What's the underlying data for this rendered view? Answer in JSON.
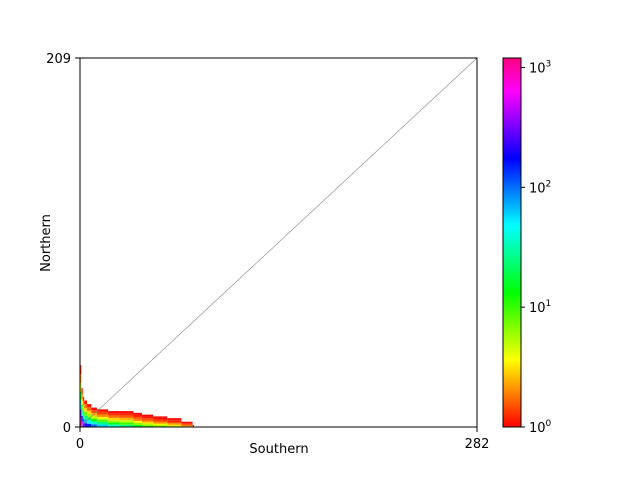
{
  "chart_data": {
    "type": "heatmap",
    "xlabel": "Southern",
    "ylabel": "Northern",
    "xlim": [
      0,
      282
    ],
    "ylim": [
      0,
      209
    ],
    "x_ticks": [
      "0",
      "282"
    ],
    "y_ticks": [
      "0",
      "209"
    ],
    "diagonal_line": true,
    "grid": false,
    "colorbar": {
      "scale": "log",
      "range": [
        1,
        1200
      ],
      "colormap": [
        "#ff0000",
        "#ff8000",
        "#ffff00",
        "#80ff00",
        "#00ff00",
        "#00ff80",
        "#00ffff",
        "#0080ff",
        "#0000ff",
        "#8000ff",
        "#ff00ff",
        "#ff0080"
      ],
      "ticks": [
        {
          "value": 1,
          "base": "10",
          "exp": "0"
        },
        {
          "value": 10,
          "base": "10",
          "exp": "1"
        },
        {
          "value": 100,
          "base": "10",
          "exp": "2"
        },
        {
          "value": 1000,
          "base": "10",
          "exp": "3"
        }
      ]
    },
    "density_profile": [
      {
        "x": 0,
        "count_boundary": [
          1000,
          300,
          60,
          15,
          5,
          2,
          1.2
        ],
        "top": 35
      },
      {
        "x": 1,
        "count_boundary": [
          500,
          150,
          40,
          12,
          4,
          2,
          1.2
        ],
        "top": 22
      },
      {
        "x": 2,
        "count_boundary": [
          300,
          100,
          30,
          10,
          4,
          2,
          1.2
        ],
        "top": 17
      },
      {
        "x": 3,
        "count_boundary": [
          200,
          70,
          25,
          8,
          3,
          1.8,
          1.1
        ],
        "top": 15
      },
      {
        "x": 5,
        "count_boundary": [
          150,
          50,
          18,
          6,
          3,
          1.6,
          1.1
        ],
        "top": 13
      },
      {
        "x": 8,
        "count_boundary": [
          100,
          35,
          12,
          5,
          2.5,
          1.5,
          1.05
        ],
        "top": 11
      },
      {
        "x": 12,
        "count_boundary": [
          60,
          25,
          9,
          4,
          2,
          1.4,
          1.05
        ],
        "top": 10
      },
      {
        "x": 20,
        "count_boundary": [
          40,
          15,
          6,
          3,
          1.8,
          1.3,
          1.02
        ],
        "top": 9
      },
      {
        "x": 28,
        "count_boundary": [
          25,
          10,
          5,
          2.5,
          1.6,
          1.2,
          1.02
        ],
        "top": 9
      },
      {
        "x": 38,
        "count_boundary": [
          15,
          7,
          3.5,
          2,
          1.5,
          1.15,
          1.01
        ],
        "top": 8
      },
      {
        "x": 44,
        "count_boundary": [
          10,
          5,
          3,
          1.8,
          1.4,
          1.1,
          1.01
        ],
        "top": 7
      },
      {
        "x": 52,
        "count_boundary": [
          7,
          4,
          2.5,
          1.6,
          1.3,
          1.08,
          1.0
        ],
        "top": 6
      },
      {
        "x": 62,
        "count_boundary": [
          5,
          3,
          2,
          1.5,
          1.25,
          1.05,
          1.0
        ],
        "top": 5
      },
      {
        "x": 72,
        "count_boundary": [
          3,
          2,
          1.6,
          1.3,
          1.15,
          1.03,
          1.0
        ],
        "top": 3
      },
      {
        "x": 80,
        "count_boundary": [
          2,
          1.5,
          1.3,
          1.15,
          1.08,
          1.02,
          1.0
        ],
        "top": 1
      }
    ]
  }
}
